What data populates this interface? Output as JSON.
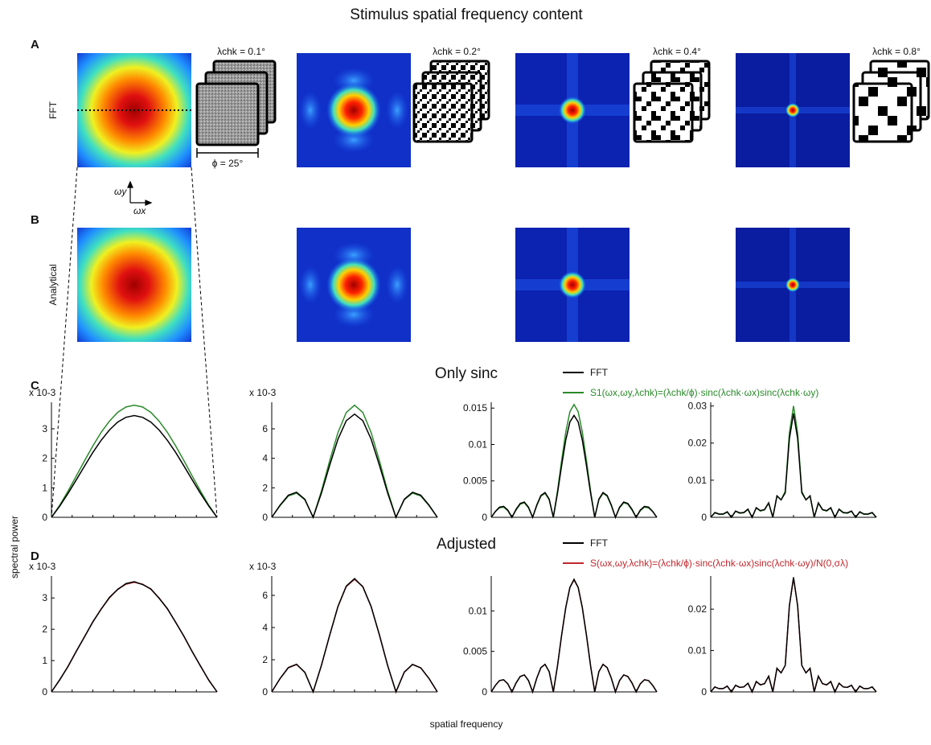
{
  "title": "Stimulus spatial frequency content",
  "panels": {
    "A": "A",
    "B": "B",
    "C": "C",
    "D": "D",
    "row_a": "FFT",
    "row_b": "Analytical",
    "lambda_labels": [
      "λchk = 0.1°",
      "λchk = 0.2°",
      "λchk = 0.4°",
      "λchk = 0.8°"
    ],
    "phi_label": "ϕ = 25°",
    "omega_y": "ωy",
    "omega_x": "ωx",
    "section_c": "Only sinc",
    "section_d": "Adjusted"
  },
  "y_label": "spectral power",
  "x_label": "spatial frequency",
  "chart_data": [
    {
      "type": "line",
      "y_multiplier": "x 10-3",
      "ylim": [
        0,
        3.9
      ],
      "yticks": [
        0,
        1,
        2,
        3
      ],
      "series": [
        {
          "color": "#2a8a2a",
          "values": [
            0,
            0.41,
            0.89,
            1.4,
            1.92,
            2.42,
            2.88,
            3.26,
            3.56,
            3.74,
            3.8,
            3.74,
            3.56,
            3.26,
            2.88,
            2.42,
            1.92,
            1.4,
            0.89,
            0.41,
            0
          ]
        },
        {
          "color": "#000000",
          "values": [
            0,
            0.38,
            0.81,
            1.27,
            1.74,
            2.2,
            2.61,
            2.96,
            3.23,
            3.39,
            3.45,
            3.39,
            3.23,
            2.96,
            2.61,
            2.2,
            1.74,
            1.27,
            0.81,
            0.38,
            0
          ]
        }
      ]
    },
    {
      "type": "line",
      "y_multiplier": "x 10-3",
      "ylim": [
        0,
        7.8
      ],
      "yticks": [
        0,
        2,
        4,
        6
      ],
      "series": [
        {
          "color": "#2a8a2a",
          "values": [
            0,
            0.79,
            1.44,
            1.64,
            1.19,
            0,
            1.78,
            3.84,
            5.75,
            7.11,
            7.6,
            7.11,
            5.75,
            3.84,
            1.78,
            0,
            1.19,
            1.64,
            1.44,
            0.79,
            0
          ]
        },
        {
          "color": "#000000",
          "values": [
            0,
            0.82,
            1.5,
            1.7,
            1.22,
            0,
            1.64,
            3.54,
            5.3,
            6.55,
            7.0,
            6.55,
            5.3,
            3.54,
            1.64,
            0,
            1.22,
            1.7,
            1.5,
            0.82,
            0
          ]
        }
      ]
    },
    {
      "type": "line",
      "ylim": [
        0,
        0.0158
      ],
      "yticks": [
        0,
        0.005,
        0.01,
        0.015
      ],
      "series": [
        {
          "name": "S1(ωx,ωy,λchk)=(λchk/ϕ)·sinc(λchk·ωx)sinc(λchk·ωy)",
          "color": "#2a8a2a",
          "values": [
            0,
            0.0008,
            0.0013,
            0.0014,
            0.0009,
            0,
            0.001,
            0.0018,
            0.002,
            0.0013,
            0,
            0.0016,
            0.0029,
            0.0033,
            0.0024,
            0,
            0.0036,
            0.0078,
            0.0117,
            0.0145,
            0.0155,
            0.0145,
            0.0117,
            0.0078,
            0.0036,
            0,
            0.0024,
            0.0033,
            0.0029,
            0.0016,
            0,
            0.0013,
            0.002,
            0.0018,
            0.001,
            0,
            0.0009,
            0.0014,
            0.0013,
            0.0008,
            0
          ]
        },
        {
          "name": "FFT",
          "color": "#000000",
          "values": [
            0,
            0.0008,
            0.0014,
            0.0015,
            0.001,
            0,
            0.0011,
            0.0019,
            0.0021,
            0.0014,
            0,
            0.0017,
            0.003,
            0.0034,
            0.0025,
            0,
            0.0033,
            0.0071,
            0.0106,
            0.0131,
            0.014,
            0.0131,
            0.0106,
            0.0071,
            0.0033,
            0,
            0.0025,
            0.0034,
            0.003,
            0.0017,
            0,
            0.0014,
            0.0021,
            0.0019,
            0.0011,
            0,
            0.001,
            0.0015,
            0.0014,
            0.0008,
            0
          ]
        }
      ]
    },
    {
      "type": "line",
      "ylim": [
        0,
        0.031
      ],
      "yticks": [
        0,
        0.01,
        0.02,
        0.03
      ],
      "series": [
        {
          "color": "#2a8a2a",
          "values": [
            0,
            0.0012,
            0.0008,
            0.0008,
            0.0014,
            0,
            0.0016,
            0.0011,
            0.0012,
            0.0021,
            0,
            0.0025,
            0.0017,
            0.002,
            0.0038,
            0,
            0.0057,
            0.0047,
            0.007,
            0.0227,
            0.03,
            0.0227,
            0.007,
            0.0047,
            0.0057,
            0,
            0.0038,
            0.002,
            0.0017,
            0.0025,
            0,
            0.0021,
            0.0012,
            0.0011,
            0.0016,
            0,
            0.0014,
            0.0008,
            0.0008,
            0.0012,
            0
          ]
        },
        {
          "color": "#000000",
          "values": [
            0,
            0.0013,
            0.0009,
            0.0009,
            0.0015,
            0,
            0.0017,
            0.0012,
            0.0013,
            0.0022,
            0,
            0.0026,
            0.0018,
            0.0021,
            0.0039,
            0,
            0.0058,
            0.0047,
            0.0066,
            0.0212,
            0.028,
            0.0212,
            0.0066,
            0.0047,
            0.0058,
            0,
            0.0039,
            0.0021,
            0.0018,
            0.0026,
            0,
            0.0022,
            0.0013,
            0.0012,
            0.0017,
            0,
            0.0015,
            0.0009,
            0.0009,
            0.0013,
            0
          ]
        }
      ]
    },
    {
      "type": "line",
      "y_multiplier": "x 10-3",
      "ylim": [
        0,
        3.7
      ],
      "yticks": [
        0,
        1,
        2,
        3
      ],
      "series": [
        {
          "color": "#c0272d",
          "values": [
            0,
            0.38,
            0.82,
            1.29,
            1.77,
            2.23,
            2.65,
            3.0,
            3.28,
            3.44,
            3.5,
            3.44,
            3.28,
            3.0,
            2.65,
            2.23,
            1.77,
            1.29,
            0.82,
            0.38,
            0
          ]
        },
        {
          "color": "#000000",
          "values": [
            0,
            0.39,
            0.81,
            1.3,
            1.76,
            2.24,
            2.64,
            3.02,
            3.27,
            3.46,
            3.52,
            3.43,
            3.29,
            2.99,
            2.66,
            2.22,
            1.78,
            1.28,
            0.83,
            0.37,
            0
          ]
        }
      ]
    },
    {
      "type": "line",
      "y_multiplier": "x 10-3",
      "ylim": [
        0,
        7.2
      ],
      "yticks": [
        0,
        2,
        4,
        6
      ],
      "series": [
        {
          "color": "#c0272d",
          "values": [
            0,
            0.82,
            1.5,
            1.7,
            1.22,
            0,
            1.64,
            3.54,
            5.3,
            6.55,
            7.0,
            6.55,
            5.3,
            3.54,
            1.64,
            0,
            1.22,
            1.7,
            1.5,
            0.82,
            0
          ]
        },
        {
          "color": "#000000",
          "values": [
            0,
            0.83,
            1.51,
            1.72,
            1.21,
            0,
            1.66,
            3.52,
            5.32,
            6.58,
            7.04,
            6.53,
            5.31,
            3.55,
            1.63,
            0,
            1.23,
            1.71,
            1.49,
            0.83,
            0
          ]
        }
      ]
    },
    {
      "type": "line",
      "ylim": [
        0,
        0.0143
      ],
      "yticks": [
        0,
        0.005,
        0.01
      ],
      "series": [
        {
          "name": "S(ωx,ωy,λchk)=(λchk/ϕ)·sinc(λchk·ωx)sinc(λchk·ωy)/N(0,σλ)",
          "color": "#c0272d",
          "values": [
            0,
            0.0008,
            0.0014,
            0.0015,
            0.001,
            0,
            0.0011,
            0.0019,
            0.0021,
            0.0014,
            0,
            0.0017,
            0.003,
            0.0034,
            0.0025,
            0,
            0.0032,
            0.007,
            0.0104,
            0.0129,
            0.0138,
            0.0129,
            0.0104,
            0.007,
            0.0032,
            0,
            0.0025,
            0.0034,
            0.003,
            0.0017,
            0,
            0.0014,
            0.0021,
            0.0019,
            0.0011,
            0,
            0.001,
            0.0015,
            0.0014,
            0.0008,
            0
          ]
        },
        {
          "name": "FFT",
          "color": "#000000",
          "values": [
            0,
            0.0008,
            0.0014,
            0.0015,
            0.001,
            0,
            0.0011,
            0.0019,
            0.0021,
            0.0014,
            0,
            0.0017,
            0.003,
            0.0034,
            0.0025,
            0,
            0.0032,
            0.007,
            0.0104,
            0.0129,
            0.0139,
            0.0129,
            0.0104,
            0.007,
            0.0032,
            0,
            0.0025,
            0.0034,
            0.003,
            0.0017,
            0,
            0.0014,
            0.0021,
            0.0019,
            0.0011,
            0,
            0.001,
            0.0015,
            0.0014,
            0.0008,
            0
          ]
        }
      ]
    },
    {
      "type": "line",
      "ylim": [
        0,
        0.028
      ],
      "yticks": [
        0,
        0.01,
        0.02
      ],
      "series": [
        {
          "color": "#c0272d",
          "values": [
            0,
            0.0012,
            0.0008,
            0.0008,
            0.0014,
            0,
            0.0016,
            0.0011,
            0.0012,
            0.0021,
            0,
            0.0025,
            0.0017,
            0.002,
            0.0038,
            0,
            0.0057,
            0.0046,
            0.0064,
            0.0208,
            0.0275,
            0.0208,
            0.0064,
            0.0046,
            0.0057,
            0,
            0.0038,
            0.002,
            0.0017,
            0.0025,
            0,
            0.0021,
            0.0012,
            0.0011,
            0.0016,
            0,
            0.0014,
            0.0008,
            0.0008,
            0.0012,
            0
          ]
        },
        {
          "color": "#000000",
          "values": [
            0,
            0.0012,
            0.0008,
            0.0008,
            0.0014,
            0,
            0.0016,
            0.0011,
            0.0012,
            0.0021,
            0,
            0.0025,
            0.0017,
            0.002,
            0.0038,
            0,
            0.0057,
            0.0046,
            0.0064,
            0.0208,
            0.0277,
            0.0208,
            0.0064,
            0.0046,
            0.0057,
            0,
            0.0038,
            0.002,
            0.0017,
            0.0025,
            0,
            0.0021,
            0.0012,
            0.0011,
            0.0016,
            0,
            0.0014,
            0.0008,
            0.0008,
            0.0012,
            0
          ]
        }
      ]
    }
  ]
}
